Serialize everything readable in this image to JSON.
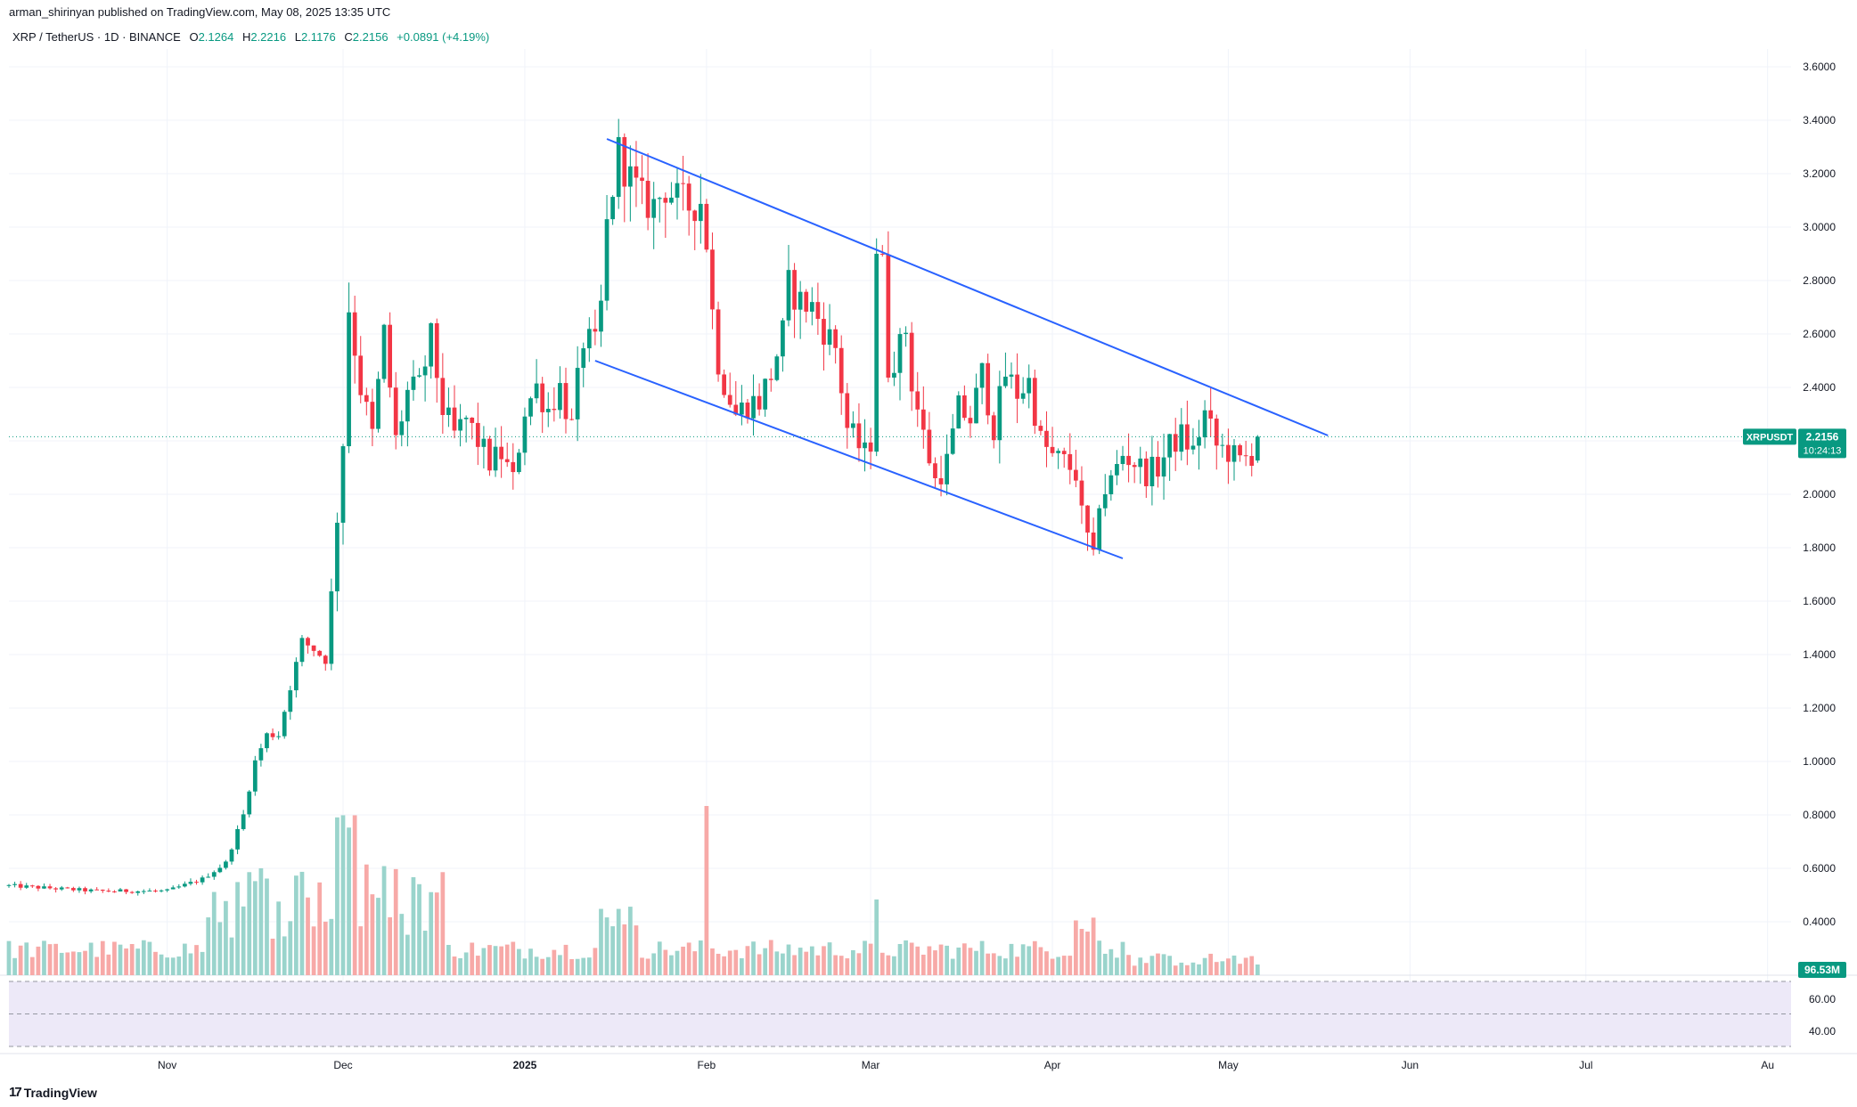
{
  "header": {
    "published": "arman_shirinyan published on TradingView.com, May 08, 2025 13:35 UTC"
  },
  "legend": {
    "symbol": "XRP / TetherUS · 1D · BINANCE",
    "o_label": "O",
    "o_value": "2.1264",
    "h_label": "H",
    "h_value": "2.2216",
    "l_label": "L",
    "l_value": "2.1176",
    "c_label": "C",
    "c_value": "2.2156",
    "change": "+0.0891 (+4.19%)"
  },
  "footer": {
    "brand": "TradingView",
    "logo_glyph": "17"
  },
  "colors": {
    "up": "#089981",
    "down": "#f23645",
    "up_vol": "#9ad4cc",
    "down_vol": "#f7a9a7",
    "line": "#2962ff",
    "rsi_band": "#ede9f8"
  },
  "chart_data": {
    "type": "candlestick",
    "symbol": "XRPUSDT",
    "last_price_label": "2.2156",
    "countdown_label": "10:24:13",
    "volume_label": "96.53M",
    "price_axis": {
      "range": [
        0.3,
        3.7
      ],
      "ticks": [
        "3.6000",
        "3.4000",
        "3.2000",
        "3.0000",
        "2.8000",
        "2.6000",
        "2.4000",
        "2.2000",
        "2.0000",
        "1.8000",
        "1.6000",
        "1.4000",
        "1.2000",
        "1.0000",
        "0.8000",
        "0.6000",
        "0.4000"
      ]
    },
    "rsi_axis": {
      "ticks": [
        "60.00",
        "40.00"
      ]
    },
    "time_axis": {
      "labels": [
        {
          "label": "Nov",
          "day": 27
        },
        {
          "label": "Dec",
          "day": 57
        },
        {
          "label": "2025",
          "day": 88
        },
        {
          "label": "Feb",
          "day": 119
        },
        {
          "label": "Mar",
          "day": 147
        },
        {
          "label": "Apr",
          "day": 178
        },
        {
          "label": "May",
          "day": 208
        },
        {
          "label": "Jun",
          "day": 239
        },
        {
          "label": "Jul",
          "day": 269
        },
        {
          "label": "Au",
          "day": 300
        }
      ]
    },
    "visible_days": [
      0,
      304
    ],
    "anchors": [
      [
        0,
        0.535
      ],
      [
        15,
        0.515
      ],
      [
        27,
        0.515
      ],
      [
        33,
        0.56
      ],
      [
        37,
        0.62
      ],
      [
        40,
        0.8
      ],
      [
        42,
        1.0
      ],
      [
        44,
        1.1
      ],
      [
        46,
        1.1
      ],
      [
        48,
        1.28
      ],
      [
        50,
        1.45
      ],
      [
        52,
        1.42
      ],
      [
        54,
        1.38
      ],
      [
        55,
        1.62
      ],
      [
        56,
        1.92
      ],
      [
        57,
        2.2
      ],
      [
        58,
        2.7
      ],
      [
        60,
        2.4
      ],
      [
        62,
        2.22
      ],
      [
        64,
        2.6
      ],
      [
        66,
        2.2
      ],
      [
        68,
        2.38
      ],
      [
        70,
        2.4
      ],
      [
        72,
        2.58
      ],
      [
        74,
        2.32
      ],
      [
        76,
        2.22
      ],
      [
        78,
        2.28
      ],
      [
        80,
        2.2
      ],
      [
        82,
        2.12
      ],
      [
        84,
        2.15
      ],
      [
        86,
        2.05
      ],
      [
        88,
        2.32
      ],
      [
        90,
        2.4
      ],
      [
        92,
        2.32
      ],
      [
        94,
        2.4
      ],
      [
        96,
        2.25
      ],
      [
        98,
        2.58
      ],
      [
        100,
        2.55
      ],
      [
        101,
        2.7
      ],
      [
        102,
        3.0
      ],
      [
        103,
        3.15
      ],
      [
        104,
        3.28
      ],
      [
        106,
        3.18
      ],
      [
        108,
        3.1
      ],
      [
        110,
        3.08
      ],
      [
        112,
        3.15
      ],
      [
        114,
        3.1
      ],
      [
        116,
        3.08
      ],
      [
        118,
        3.1
      ],
      [
        119,
        2.95
      ],
      [
        120,
        2.68
      ],
      [
        121,
        2.5
      ],
      [
        122,
        2.42
      ],
      [
        124,
        2.3
      ],
      [
        126,
        2.34
      ],
      [
        128,
        2.35
      ],
      [
        130,
        2.45
      ],
      [
        132,
        2.6
      ],
      [
        133,
        2.78
      ],
      [
        135,
        2.72
      ],
      [
        137,
        2.7
      ],
      [
        139,
        2.62
      ],
      [
        141,
        2.55
      ],
      [
        143,
        2.25
      ],
      [
        145,
        2.18
      ],
      [
        146,
        2.15
      ],
      [
        147,
        2.2
      ],
      [
        148,
        2.93
      ],
      [
        149,
        2.85
      ],
      [
        150,
        2.48
      ],
      [
        152,
        2.55
      ],
      [
        153,
        2.62
      ],
      [
        154,
        2.42
      ],
      [
        156,
        2.22
      ],
      [
        158,
        2.05
      ],
      [
        160,
        2.12
      ],
      [
        161,
        2.22
      ],
      [
        162,
        2.32
      ],
      [
        164,
        2.28
      ],
      [
        166,
        2.45
      ],
      [
        168,
        2.25
      ],
      [
        170,
        2.45
      ],
      [
        172,
        2.38
      ],
      [
        174,
        2.42
      ],
      [
        176,
        2.2
      ],
      [
        178,
        2.14
      ],
      [
        180,
        2.12
      ],
      [
        182,
        2.08
      ],
      [
        183,
        1.92
      ],
      [
        185,
        1.75
      ],
      [
        186,
        1.98
      ],
      [
        188,
        2.05
      ],
      [
        190,
        2.15
      ],
      [
        192,
        2.12
      ],
      [
        194,
        2.08
      ],
      [
        196,
        2.1
      ],
      [
        198,
        2.18
      ],
      [
        200,
        2.22
      ],
      [
        202,
        2.16
      ],
      [
        204,
        2.3
      ],
      [
        206,
        2.18
      ],
      [
        208,
        2.16
      ],
      [
        210,
        2.12
      ],
      [
        212,
        2.15
      ],
      [
        213,
        2.2156
      ]
    ],
    "annotations": [
      {
        "type": "trendline",
        "name": "upper-channel-line",
        "from": [
          102,
          3.33
        ],
        "to": [
          225,
          2.22
        ]
      },
      {
        "type": "trendline",
        "name": "lower-channel-line",
        "from": [
          100,
          2.5
        ],
        "to": [
          190,
          1.76
        ]
      }
    ]
  }
}
